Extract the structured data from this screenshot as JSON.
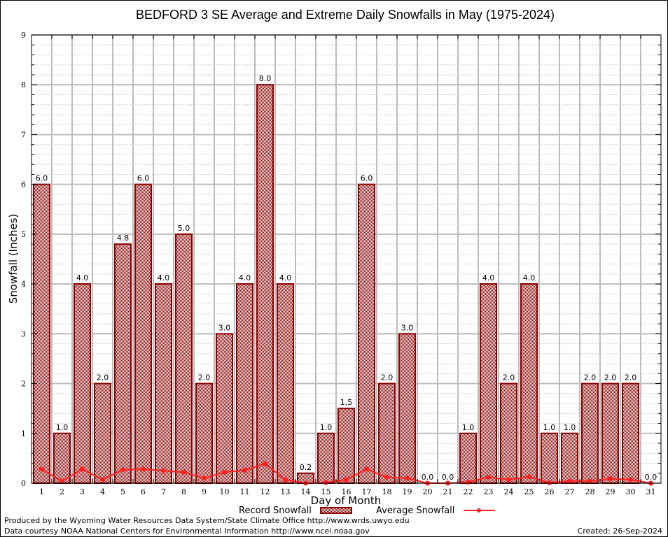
{
  "chart_data": {
    "type": "bar",
    "title": "BEDFORD 3 SE Average and Extreme Daily Snowfalls in May (1975-2024)",
    "xlabel": "Day of Month",
    "ylabel": "Snowfall (Inches)",
    "ylim": [
      0,
      9
    ],
    "yticks": [
      "0",
      "1",
      "2",
      "3",
      "4",
      "5",
      "6",
      "7",
      "8",
      "9"
    ],
    "categories": [
      "1",
      "2",
      "3",
      "4",
      "5",
      "6",
      "7",
      "8",
      "9",
      "10",
      "11",
      "12",
      "13",
      "14",
      "15",
      "16",
      "17",
      "18",
      "19",
      "20",
      "21",
      "22",
      "23",
      "24",
      "25",
      "26",
      "27",
      "28",
      "29",
      "30",
      "31"
    ],
    "grid": true,
    "series": [
      {
        "name": "Record Snowfall",
        "type": "bar",
        "values": [
          6.0,
          1.0,
          4.0,
          2.0,
          4.8,
          6.0,
          4.0,
          5.0,
          2.0,
          3.0,
          4.0,
          8.0,
          4.0,
          0.2,
          1.0,
          1.5,
          6.0,
          2.0,
          3.0,
          0.0,
          0.0,
          1.0,
          4.0,
          2.0,
          4.0,
          1.0,
          1.0,
          2.0,
          2.0,
          2.0,
          0.0
        ],
        "labels": [
          "6.0",
          "1.0",
          "4.0",
          "2.0",
          "4.8",
          "6.0",
          "4.0",
          "5.0",
          "2.0",
          "3.0",
          "4.0",
          "8.0",
          "4.0",
          "0.2",
          "1.0",
          "1.5",
          "6.0",
          "2.0",
          "3.0",
          "0.0",
          "0.0",
          "1.0",
          "4.0",
          "2.0",
          "4.0",
          "1.0",
          "1.0",
          "2.0",
          "2.0",
          "2.0",
          "0.0"
        ],
        "color": "#8b0000"
      },
      {
        "name": "Average Snowfall",
        "type": "line",
        "values": [
          0.28,
          0.04,
          0.28,
          0.07,
          0.27,
          0.28,
          0.25,
          0.22,
          0.1,
          0.22,
          0.26,
          0.39,
          0.07,
          0.0,
          0.01,
          0.07,
          0.28,
          0.12,
          0.1,
          0.0,
          0.0,
          0.02,
          0.12,
          0.07,
          0.13,
          0.01,
          0.04,
          0.04,
          0.09,
          0.07,
          0.0
        ],
        "color": "#ff2020"
      }
    ],
    "legend_position": "bottom-center"
  },
  "footer": {
    "line1": "Produced by the Wyoming Water Resources Data System/State Climate Office http://www.wrds.uwyo.edu",
    "line2": "Data courtesy NOAA National Centers for Environmental Information http://www.ncei.noaa.gov",
    "created": "Created: 26-Sep-2024"
  }
}
